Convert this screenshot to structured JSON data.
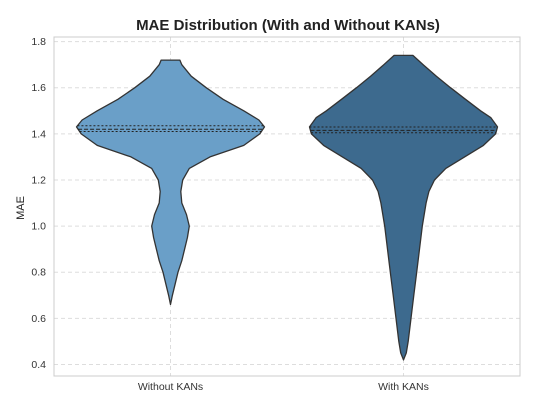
{
  "chart_data": {
    "type": "violin",
    "title": "MAE Distribution (With and Without KANs)",
    "xlabel": "",
    "ylabel": "MAE",
    "ylim": [
      0.35,
      1.82
    ],
    "yticks": [
      "0.4",
      "0.6",
      "0.8",
      "1.0",
      "1.2",
      "1.4",
      "1.6",
      "1.8"
    ],
    "grid": true,
    "categories": [
      "Without KANs",
      "With KANs"
    ],
    "series": [
      {
        "category": "Without KANs",
        "color": "#6a9fc8",
        "min": 0.66,
        "max": 1.72,
        "q1": 1.41,
        "median": 1.42,
        "q3": 1.435,
        "density": [
          [
            0.66,
            0.0
          ],
          [
            0.7,
            0.02
          ],
          [
            0.75,
            0.05
          ],
          [
            0.8,
            0.08
          ],
          [
            0.85,
            0.12
          ],
          [
            0.9,
            0.15
          ],
          [
            0.95,
            0.18
          ],
          [
            1.0,
            0.2
          ],
          [
            1.05,
            0.17
          ],
          [
            1.1,
            0.12
          ],
          [
            1.15,
            0.11
          ],
          [
            1.2,
            0.13
          ],
          [
            1.25,
            0.2
          ],
          [
            1.3,
            0.42
          ],
          [
            1.35,
            0.78
          ],
          [
            1.4,
            0.95
          ],
          [
            1.43,
            1.0
          ],
          [
            1.46,
            0.94
          ],
          [
            1.5,
            0.78
          ],
          [
            1.55,
            0.56
          ],
          [
            1.6,
            0.38
          ],
          [
            1.65,
            0.22
          ],
          [
            1.7,
            0.12
          ],
          [
            1.72,
            0.1
          ]
        ]
      },
      {
        "category": "With KANs",
        "color": "#3d6a8e",
        "min": 0.42,
        "max": 1.74,
        "q1": 1.405,
        "median": 1.415,
        "q3": 1.43,
        "density": [
          [
            0.42,
            0.0
          ],
          [
            0.45,
            0.03
          ],
          [
            0.5,
            0.05
          ],
          [
            0.6,
            0.08
          ],
          [
            0.7,
            0.11
          ],
          [
            0.8,
            0.14
          ],
          [
            0.9,
            0.17
          ],
          [
            1.0,
            0.2
          ],
          [
            1.1,
            0.24
          ],
          [
            1.15,
            0.27
          ],
          [
            1.2,
            0.33
          ],
          [
            1.25,
            0.45
          ],
          [
            1.3,
            0.65
          ],
          [
            1.35,
            0.85
          ],
          [
            1.4,
            0.98
          ],
          [
            1.43,
            1.0
          ],
          [
            1.47,
            0.93
          ],
          [
            1.5,
            0.82
          ],
          [
            1.55,
            0.66
          ],
          [
            1.6,
            0.5
          ],
          [
            1.65,
            0.35
          ],
          [
            1.7,
            0.21
          ],
          [
            1.74,
            0.1
          ]
        ]
      }
    ]
  }
}
